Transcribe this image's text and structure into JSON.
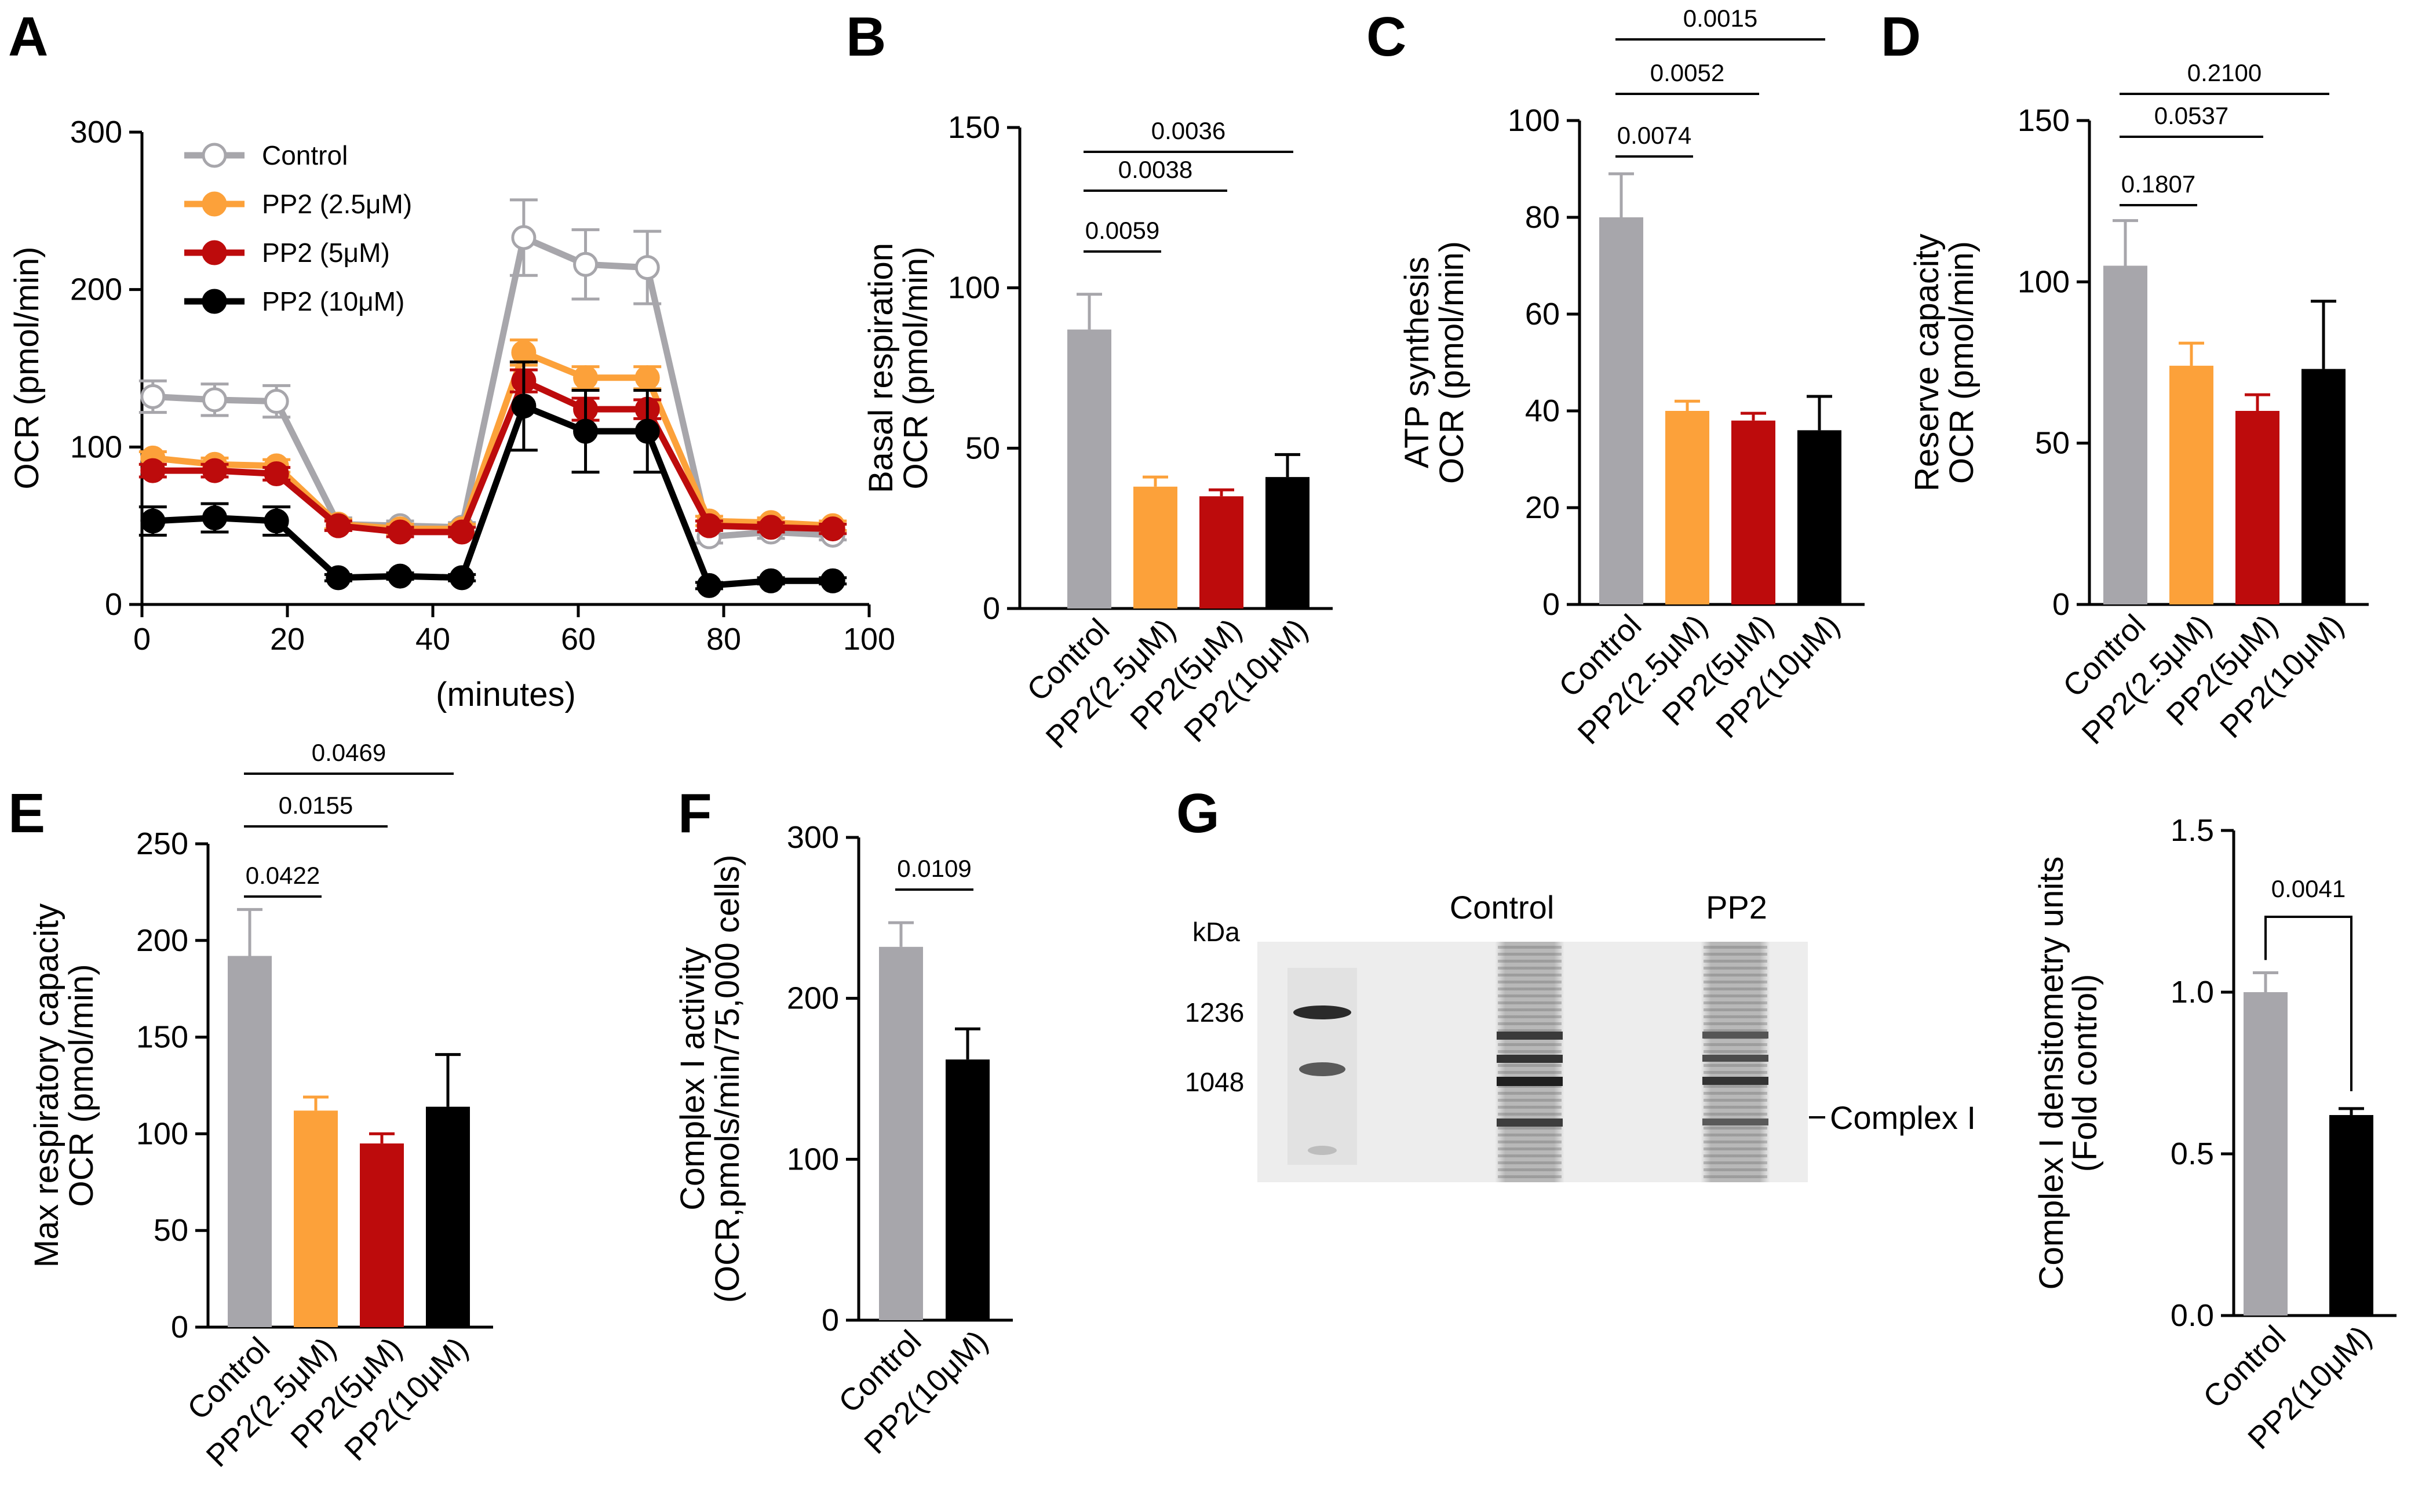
{
  "colors": {
    "control": "#a7a6ab",
    "pp2_2_5": "#fca13a",
    "pp2_5": "#bd0b0c",
    "pp2_10": "#000000"
  },
  "panels": {
    "A": {
      "label": "A"
    },
    "B": {
      "label": "B"
    },
    "C": {
      "label": "C"
    },
    "D": {
      "label": "D"
    },
    "E": {
      "label": "E"
    },
    "F": {
      "label": "F"
    },
    "G": {
      "label": "G"
    }
  },
  "chart_data": [
    {
      "id": "A",
      "type": "line",
      "title": "",
      "ylabel": "OCR (pmol/min)",
      "xlabel": "(minutes)",
      "xlim": [
        0,
        100
      ],
      "ylim": [
        0,
        300
      ],
      "xticks": [
        "0",
        "20",
        "40",
        "60",
        "80",
        "100"
      ],
      "yticks": [
        "0",
        "100",
        "200",
        "300"
      ],
      "x": [
        1.5,
        10,
        18.5,
        27,
        35.5,
        44,
        52.5,
        61,
        69.5,
        78,
        86.5,
        95
      ],
      "series": [
        {
          "name": "Control",
          "color": "#a7a6ab",
          "open": true,
          "values": [
            132,
            130,
            129,
            51,
            50,
            49,
            233,
            216,
            214,
            43,
            46,
            44
          ],
          "errors": [
            10,
            10,
            10,
            4,
            3,
            3,
            24,
            22,
            23,
            4,
            4,
            3
          ]
        },
        {
          "name": "PP2 (2.5μM)",
          "color": "#fca13a",
          "open": false,
          "values": [
            93,
            89,
            88,
            51,
            48,
            48,
            160,
            144,
            144,
            53,
            52,
            50
          ],
          "errors": [
            4,
            4,
            4,
            3,
            3,
            3,
            8,
            7,
            7,
            3,
            3,
            3
          ]
        },
        {
          "name": "PP2 (5μM)",
          "color": "#bd0b0c",
          "open": false,
          "values": [
            85,
            85,
            83,
            50,
            46,
            46,
            142,
            124,
            124,
            50,
            49,
            48
          ],
          "errors": [
            4,
            4,
            4,
            3,
            3,
            3,
            7,
            7,
            6,
            3,
            3,
            3
          ]
        },
        {
          "name": "PP2 (10μM)",
          "color": "#000000",
          "open": false,
          "values": [
            53,
            55,
            53,
            17,
            18,
            17,
            126,
            110,
            110,
            12,
            15,
            15
          ],
          "errors": [
            9,
            9,
            9,
            2,
            2,
            2,
            28,
            26,
            26,
            2,
            2,
            2
          ]
        }
      ]
    },
    {
      "id": "B",
      "type": "bar",
      "ylabel": [
        "Basal respiration",
        "OCR (pmol/min)"
      ],
      "ylim": [
        0,
        150
      ],
      "yticks": [
        "0",
        "50",
        "100",
        "150"
      ],
      "categories": [
        "Control",
        "PP2(2.5μM)",
        "PP2(5μM)",
        "PP2(10μM)"
      ],
      "values": [
        87,
        38,
        35,
        41
      ],
      "errors": [
        11,
        3,
        2,
        7
      ],
      "pvalues": [
        {
          "label": "0.0059",
          "from": 0,
          "to": 1
        },
        {
          "label": "0.0038",
          "from": 0,
          "to": 2
        },
        {
          "label": "0.0036",
          "from": 0,
          "to": 3
        }
      ]
    },
    {
      "id": "C",
      "type": "bar",
      "ylabel": [
        "ATP synthesis",
        "OCR (pmol/min)"
      ],
      "ylim": [
        0,
        100
      ],
      "yticks": [
        "0",
        "20",
        "40",
        "60",
        "80",
        "100"
      ],
      "categories": [
        "Control",
        "PP2(2.5μM)",
        "PP2(5μM)",
        "PP2(10μM)"
      ],
      "values": [
        80,
        40,
        38,
        36
      ],
      "errors": [
        9,
        2,
        1.5,
        7
      ],
      "pvalues": [
        {
          "label": "0.0074",
          "from": 0,
          "to": 1
        },
        {
          "label": "0.0052",
          "from": 0,
          "to": 2
        },
        {
          "label": "0.0015",
          "from": 0,
          "to": 3
        }
      ]
    },
    {
      "id": "D",
      "type": "bar",
      "ylabel": [
        "Reserve capacity",
        "OCR (pmol/min)"
      ],
      "ylim": [
        0,
        150
      ],
      "yticks": [
        "0",
        "50",
        "100",
        "150"
      ],
      "categories": [
        "Control",
        "PP2(2.5μM)",
        "PP2(5μM)",
        "PP2(10μM)"
      ],
      "values": [
        105,
        74,
        60,
        73
      ],
      "errors": [
        14,
        7,
        5,
        21
      ],
      "pvalues": [
        {
          "label": "0.1807",
          "from": 0,
          "to": 1
        },
        {
          "label": "0.0537",
          "from": 0,
          "to": 2
        },
        {
          "label": "0.2100",
          "from": 0,
          "to": 3
        }
      ]
    },
    {
      "id": "E",
      "type": "bar",
      "ylabel": [
        "Max respiratory capacity",
        "OCR (pmol/min)"
      ],
      "ylim": [
        0,
        250
      ],
      "yticks": [
        "0",
        "50",
        "100",
        "150",
        "200",
        "250"
      ],
      "categories": [
        "Control",
        "PP2(2.5μM)",
        "PP2(5μM)",
        "PP2(10μM)"
      ],
      "values": [
        192,
        112,
        95,
        114
      ],
      "errors": [
        24,
        7,
        5,
        27
      ],
      "pvalues": [
        {
          "label": "0.0422",
          "from": 0,
          "to": 1
        },
        {
          "label": "0.0155",
          "from": 0,
          "to": 2
        },
        {
          "label": "0.0469",
          "from": 0,
          "to": 3
        }
      ]
    },
    {
      "id": "F",
      "type": "bar",
      "ylabel": [
        "Complex I activity",
        "(OCR,pmols/min/75,000 cells)"
      ],
      "ylim": [
        0,
        300
      ],
      "yticks": [
        "0",
        "100",
        "200",
        "300"
      ],
      "categories": [
        "Control",
        "PP2(10μM)"
      ],
      "values": [
        232,
        162
      ],
      "errors": [
        15,
        19
      ],
      "pvalues": [
        {
          "label": "0.0109",
          "from": 0,
          "to": 1
        }
      ]
    },
    {
      "id": "G",
      "type": "bar",
      "ylabel": [
        "Complex I densitometry units",
        "(Fold control)"
      ],
      "ylim": [
        0,
        1.5
      ],
      "yticks": [
        "0.0",
        "0.5",
        "1.0",
        "1.5"
      ],
      "categories": [
        "Control",
        "PP2(10μM)"
      ],
      "values": [
        1.0,
        0.62
      ],
      "errors": [
        0.06,
        0.02
      ],
      "pvalues": [
        {
          "label": "0.0041",
          "from": 0,
          "to": 1
        }
      ]
    }
  ],
  "blot": {
    "unit_label": "kDa",
    "markers": [
      "1236",
      "1048"
    ],
    "lanes": [
      "Control",
      "PP2"
    ],
    "band_label": "Complex I"
  }
}
